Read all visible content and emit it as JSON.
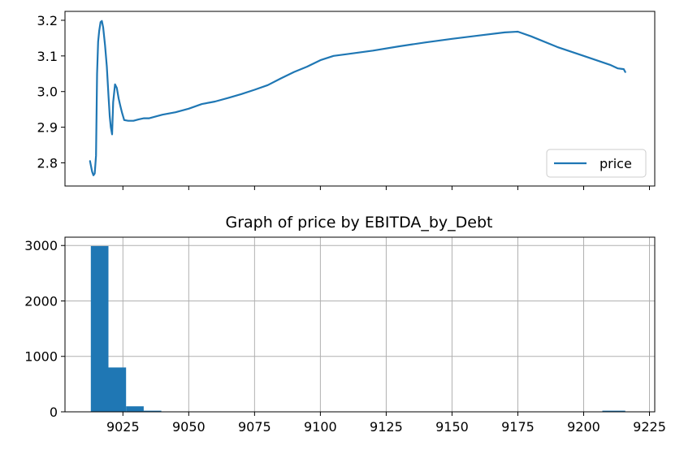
{
  "chart_data": [
    {
      "type": "line",
      "title": "",
      "xlabel": "",
      "ylabel": "",
      "xlim": [
        9003,
        9227
      ],
      "ylim": [
        2.735,
        3.225
      ],
      "yticks": [
        2.8,
        2.9,
        3.0,
        3.1,
        3.2
      ],
      "ytick_labels": [
        "2.8",
        "2.9",
        "3.0",
        "3.1",
        "3.2"
      ],
      "xticks": [
        9025,
        9050,
        9075,
        9100,
        9125,
        9150,
        9175,
        9200,
        9225
      ],
      "grid": false,
      "legend": {
        "placement": "lower-right",
        "entries": [
          "price"
        ]
      },
      "series": [
        {
          "name": "price",
          "color": "#1f77b4",
          "x": [
            9012.5,
            9013.3,
            9013.8,
            9014.3,
            9014.8,
            9015.2,
            9015.6,
            9016.0,
            9016.5,
            9017.0,
            9017.5,
            9018.2,
            9018.9,
            9019.5,
            9020.0,
            9020.4,
            9020.9,
            9021.3,
            9022.0,
            9022.7,
            9023.4,
            9024.0,
            9024.7,
            9025.5,
            9027.0,
            9029.0,
            9031.0,
            9033.0,
            9035.0,
            9040.0,
            9045.0,
            9050.0,
            9055.0,
            9060.0,
            9065.0,
            9070.0,
            9075.0,
            9080.0,
            9085.0,
            9090.0,
            9095.0,
            9100.0,
            9105.0,
            9110.0,
            9120.0,
            9130.0,
            9140.0,
            9150.0,
            9160.0,
            9170.0,
            9175.0,
            9180.0,
            9190.0,
            9200.0,
            9210.0,
            9213.0,
            9215.2,
            9215.8
          ],
          "y": [
            2.805,
            2.775,
            2.765,
            2.77,
            2.82,
            3.05,
            3.14,
            3.17,
            3.195,
            3.198,
            3.18,
            3.13,
            3.07,
            2.99,
            2.93,
            2.9,
            2.88,
            2.97,
            3.02,
            3.01,
            2.98,
            2.96,
            2.94,
            2.92,
            2.918,
            2.918,
            2.922,
            2.925,
            2.925,
            2.935,
            2.942,
            2.952,
            2.965,
            2.972,
            2.982,
            2.993,
            3.005,
            3.018,
            3.037,
            3.055,
            3.07,
            3.088,
            3.1,
            3.105,
            3.115,
            3.127,
            3.138,
            3.148,
            3.157,
            3.166,
            3.168,
            3.155,
            3.125,
            3.1,
            3.075,
            3.065,
            3.063,
            3.055
          ]
        }
      ]
    },
    {
      "type": "bar",
      "title": "Graph of price by EBITDA_by_Debt",
      "xlabel": "",
      "ylabel": "",
      "xlim": [
        9003,
        9227
      ],
      "ylim": [
        0,
        3150
      ],
      "xticks": [
        9025,
        9050,
        9075,
        9100,
        9125,
        9150,
        9175,
        9200,
        9225
      ],
      "xtick_labels": [
        "9025",
        "9050",
        "9075",
        "9100",
        "9125",
        "9150",
        "9175",
        "9200",
        "9225"
      ],
      "yticks": [
        0,
        1000,
        2000,
        3000
      ],
      "ytick_labels": [
        "0",
        "1000",
        "2000",
        "3000"
      ],
      "grid": true,
      "bin_edges": [
        9012.8,
        9019.5,
        9026.2,
        9032.9,
        9039.6,
        9046.3,
        9053.0,
        9059.7,
        9066.4,
        9073.1,
        9079.8,
        9086.5,
        9093.2,
        9099.9,
        9106.6,
        9113.3,
        9120.0,
        9126.7,
        9133.4,
        9140.1,
        9146.8,
        9153.5,
        9160.2,
        9166.9,
        9173.6,
        9180.3,
        9187.0,
        9193.7,
        9200.4,
        9207.1,
        9215.8
      ],
      "values": [
        2990,
        800,
        100,
        20,
        5,
        3,
        2,
        2,
        2,
        2,
        2,
        2,
        2,
        2,
        2,
        2,
        2,
        2,
        2,
        2,
        2,
        2,
        2,
        2,
        2,
        2,
        2,
        2,
        2,
        20
      ],
      "color": "#1f77b4"
    }
  ]
}
